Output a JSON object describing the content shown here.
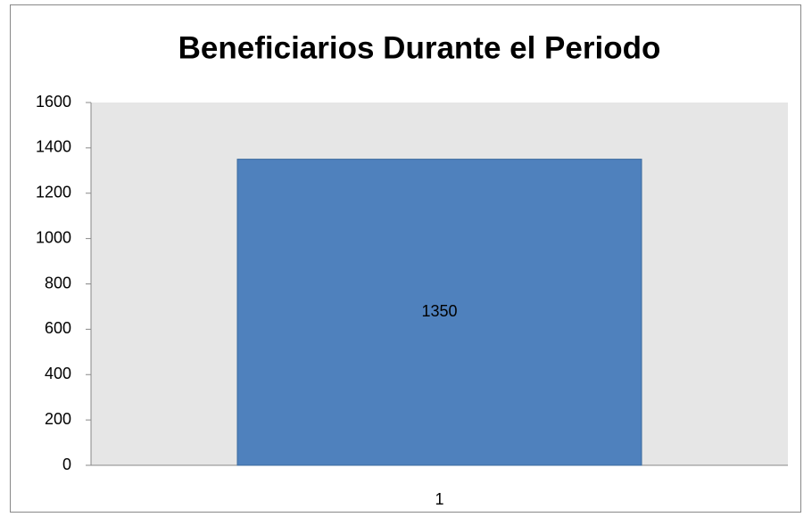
{
  "chart_data": {
    "type": "bar",
    "title": "Beneficiarios Durante el Periodo",
    "categories": [
      "1"
    ],
    "values": [
      1350
    ],
    "color": "#4f81bd",
    "ylim": [
      0,
      1600
    ],
    "yticks": [
      0,
      200,
      400,
      600,
      800,
      1000,
      1200,
      1400,
      1600
    ],
    "grid": false
  }
}
